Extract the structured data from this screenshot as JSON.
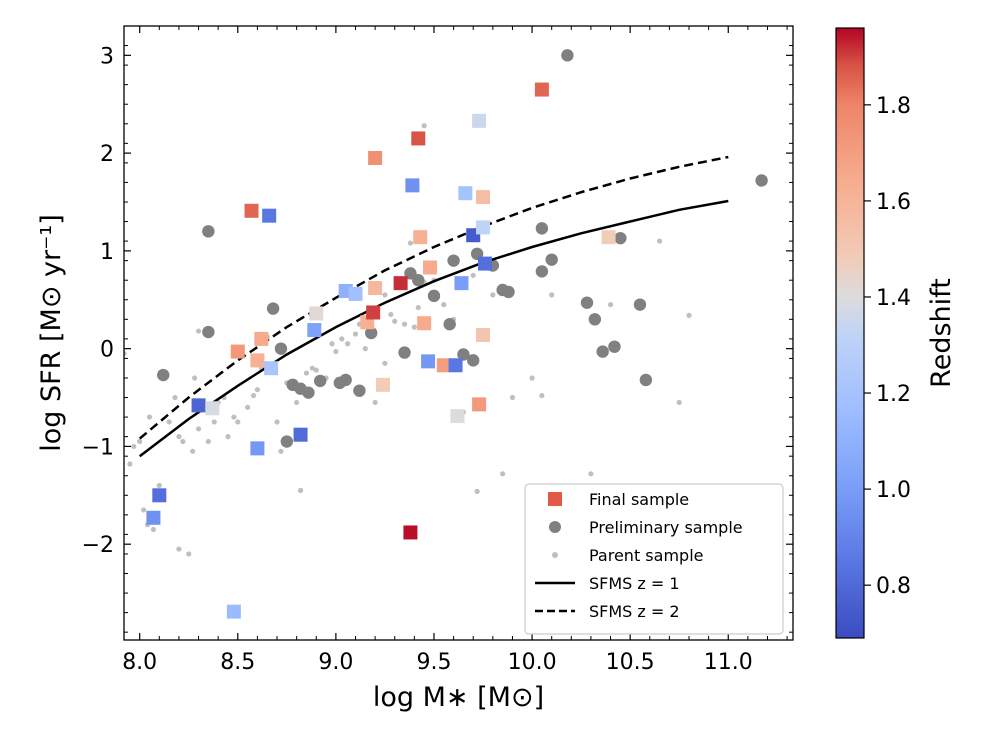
{
  "chart_data": {
    "type": "scatter",
    "title": "",
    "xlabel": "log M∗ [M⊙]",
    "ylabel": "log SFR [M⊙ yr⁻¹]",
    "xlim": [
      7.92,
      11.33
    ],
    "ylim": [
      -2.98,
      3.3
    ],
    "xticks": [
      8.0,
      8.5,
      9.0,
      9.5,
      10.0,
      10.5,
      11.0
    ],
    "xtick_labels": [
      "8.0",
      "8.5",
      "9.0",
      "9.5",
      "10.0",
      "10.5",
      "11.0"
    ],
    "yticks": [
      -2,
      -1,
      0,
      1,
      2,
      3
    ],
    "ytick_labels": [
      "−2",
      "−1",
      "0",
      "1",
      "2",
      "3"
    ],
    "colorbar": {
      "label": "Redshift",
      "range": [
        0.69,
        1.96
      ],
      "ticks": [
        0.8,
        1.0,
        1.2,
        1.4,
        1.6,
        1.8
      ],
      "tick_labels": [
        "0.8",
        "1.0",
        "1.2",
        "1.4",
        "1.6",
        "1.8"
      ],
      "colormap": "coolwarm"
    },
    "legend": {
      "placement": "lower-right",
      "entries": [
        {
          "label": "Final sample",
          "marker": "square",
          "color": "#e05a45"
        },
        {
          "label": "Preliminary sample",
          "marker": "circle",
          "color": "#808080"
        },
        {
          "label": "Parent sample",
          "marker": "dot",
          "color": "#bfbfbf"
        },
        {
          "label": "SFMS z = 1",
          "marker": "solid-line",
          "color": "#000000"
        },
        {
          "label": "SFMS z = 2",
          "marker": "dashed-line",
          "color": "#000000"
        }
      ]
    },
    "series": [
      {
        "name": "SFMS z = 1",
        "type": "line",
        "style": "solid",
        "x": [
          8.0,
          8.25,
          8.5,
          8.75,
          9.0,
          9.25,
          9.5,
          9.75,
          10.0,
          10.25,
          10.5,
          10.75,
          11.0
        ],
        "y": [
          -1.1,
          -0.72,
          -0.38,
          -0.06,
          0.22,
          0.47,
          0.69,
          0.88,
          1.04,
          1.18,
          1.3,
          1.42,
          1.51
        ]
      },
      {
        "name": "SFMS z = 2",
        "type": "line",
        "style": "dashed",
        "x": [
          8.0,
          8.25,
          8.5,
          8.75,
          9.0,
          9.25,
          9.5,
          9.75,
          10.0,
          10.25,
          10.5,
          10.75,
          11.0
        ],
        "y": [
          -0.92,
          -0.5,
          -0.12,
          0.22,
          0.52,
          0.8,
          1.04,
          1.25,
          1.44,
          1.6,
          1.74,
          1.86,
          1.96
        ]
      },
      {
        "name": "Parent sample",
        "type": "scatter",
        "marker": "dot",
        "x": [
          7.92,
          7.95,
          7.97,
          8.0,
          8.02,
          8.04,
          8.05,
          8.07,
          8.1,
          8.12,
          8.15,
          8.18,
          8.2,
          8.22,
          8.25,
          8.27,
          8.28,
          8.3,
          8.32,
          8.35,
          8.38,
          8.4,
          8.43,
          8.45,
          8.48,
          8.5,
          8.55,
          8.58,
          8.6,
          8.62,
          8.65,
          8.7,
          8.72,
          8.75,
          8.78,
          8.8,
          8.82,
          8.85,
          8.88,
          8.9,
          8.92,
          8.95,
          8.98,
          9.0,
          9.03,
          9.06,
          9.1,
          9.12,
          9.15,
          9.2,
          9.25,
          9.28,
          9.3,
          9.35,
          9.4,
          9.42,
          9.45,
          9.5,
          9.55,
          9.6,
          9.65,
          9.7,
          9.72,
          9.75,
          9.8,
          9.85,
          9.9,
          10.0,
          10.05,
          10.1,
          10.3,
          10.4,
          10.65,
          10.75,
          10.8,
          9.45,
          9.38,
          9.25,
          8.2,
          8.3
        ],
        "y": [
          -0.05,
          -1.18,
          -1.0,
          -0.95,
          -1.65,
          -1.8,
          -0.7,
          -1.85,
          -1.4,
          -1.5,
          -0.75,
          -0.5,
          -0.9,
          -0.95,
          -2.1,
          -1.05,
          -0.3,
          -0.82,
          -0.6,
          -0.95,
          -0.75,
          -0.55,
          -0.5,
          -0.9,
          -0.7,
          -0.75,
          -0.6,
          -0.48,
          -0.42,
          -0.2,
          0.12,
          -0.75,
          -1.05,
          -0.35,
          -0.4,
          -0.55,
          -1.45,
          -0.25,
          -0.2,
          -0.22,
          -0.35,
          -0.3,
          0.05,
          -0.03,
          0.1,
          0.05,
          0.15,
          0.25,
          0.0,
          -0.55,
          -0.15,
          0.35,
          0.28,
          0.25,
          0.22,
          0.42,
          0.68,
          0.7,
          0.45,
          0.3,
          -0.65,
          0.75,
          -1.46,
          0.88,
          0.55,
          -1.28,
          -0.5,
          -0.3,
          -0.48,
          0.55,
          -1.28,
          0.45,
          1.1,
          -0.55,
          0.34,
          2.28,
          1.08,
          0.55,
          -2.05,
          0.18
        ]
      },
      {
        "name": "Preliminary sample",
        "type": "scatter",
        "marker": "circle",
        "x": [
          8.12,
          8.35,
          8.35,
          8.68,
          8.75,
          8.78,
          8.82,
          8.86,
          8.92,
          9.02,
          9.05,
          9.12,
          9.18,
          9.35,
          9.38,
          9.5,
          9.58,
          9.6,
          9.65,
          9.7,
          9.72,
          9.8,
          9.85,
          9.88,
          10.05,
          10.05,
          10.1,
          10.18,
          10.28,
          10.32,
          10.36,
          10.42,
          10.45,
          10.55,
          10.58,
          11.17,
          9.42,
          8.72
        ],
        "y": [
          -0.27,
          1.2,
          0.17,
          0.41,
          -0.95,
          -0.37,
          -0.41,
          -0.45,
          -0.33,
          -0.35,
          -0.32,
          -0.43,
          0.16,
          -0.04,
          0.77,
          0.54,
          0.25,
          0.9,
          -0.06,
          -0.12,
          0.97,
          0.85,
          0.6,
          0.58,
          0.79,
          1.23,
          0.91,
          3.0,
          0.47,
          0.3,
          -0.03,
          0.02,
          1.13,
          0.45,
          -0.32,
          1.72,
          0.7,
          0.0
        ]
      },
      {
        "name": "Final sample",
        "type": "scatter",
        "marker": "square",
        "x": [
          8.07,
          8.1,
          8.3,
          8.37,
          8.48,
          8.5,
          8.57,
          8.6,
          8.6,
          8.62,
          8.66,
          8.67,
          8.82,
          8.89,
          8.9,
          9.05,
          9.1,
          9.16,
          9.19,
          9.2,
          9.2,
          9.24,
          9.33,
          9.38,
          9.39,
          9.42,
          9.43,
          9.45,
          9.47,
          9.48,
          9.55,
          9.61,
          9.62,
          9.64,
          9.66,
          9.7,
          9.73,
          9.73,
          9.75,
          9.75,
          9.75,
          9.76,
          10.05,
          10.39
        ],
        "y": [
          -1.73,
          -1.5,
          -0.58,
          -0.61,
          -2.69,
          -0.03,
          1.41,
          -1.02,
          -0.12,
          0.1,
          1.36,
          -0.2,
          -0.88,
          0.19,
          0.36,
          0.59,
          0.56,
          0.27,
          0.37,
          1.95,
          0.62,
          -0.37,
          0.67,
          -1.88,
          1.67,
          2.15,
          1.14,
          0.26,
          -0.13,
          0.83,
          -0.17,
          -0.17,
          -0.69,
          0.67,
          1.59,
          1.16,
          -0.57,
          2.33,
          1.24,
          0.14,
          1.55,
          0.87,
          2.65,
          1.14
        ],
        "redshift": [
          0.95,
          0.82,
          0.78,
          1.38,
          1.15,
          1.72,
          1.85,
          0.98,
          1.62,
          1.65,
          0.85,
          1.22,
          0.8,
          1.02,
          1.42,
          1.1,
          1.18,
          1.62,
          1.9,
          1.75,
          1.58,
          1.48,
          1.92,
          1.95,
          0.95,
          1.88,
          1.62,
          1.65,
          0.98,
          1.65,
          1.7,
          0.85,
          1.4,
          1.0,
          1.2,
          0.75,
          1.72,
          1.35,
          1.32,
          1.52,
          1.55,
          0.82,
          1.85,
          1.48
        ]
      }
    ]
  }
}
